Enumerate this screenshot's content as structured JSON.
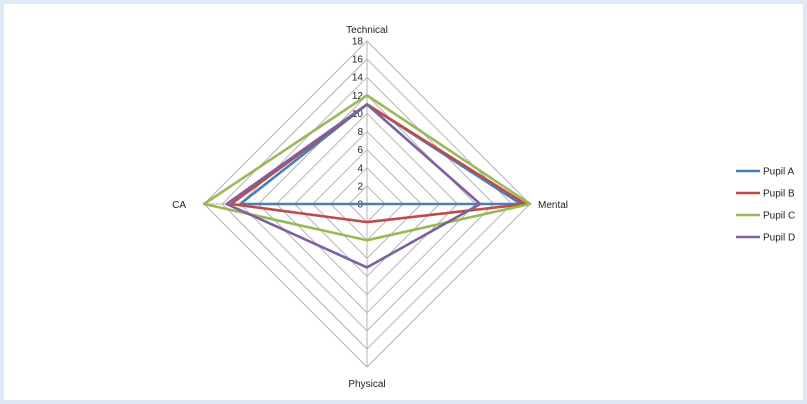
{
  "chart_data": {
    "type": "radar",
    "axes": [
      "Technical",
      "Mental",
      "Physical",
      "CA"
    ],
    "ticks": [
      "0",
      "2",
      "4",
      "6",
      "8",
      "10",
      "12",
      "14",
      "16",
      "18"
    ],
    "range": [
      0,
      18
    ],
    "grid": true,
    "legend_position": "right",
    "series": [
      {
        "name": "Pupil A",
        "values": [
          11,
          17,
          0,
          14
        ],
        "color": "#4a7ebb"
      },
      {
        "name": "Pupil B",
        "values": [
          11,
          17.5,
          2,
          15
        ],
        "color": "#be4b48"
      },
      {
        "name": "Pupil C",
        "values": [
          12,
          18,
          4,
          18
        ],
        "color": "#98b954"
      },
      {
        "name": "Pupil D",
        "values": [
          11,
          12.5,
          7,
          15.5
        ],
        "color": "#7d60a0"
      }
    ]
  }
}
